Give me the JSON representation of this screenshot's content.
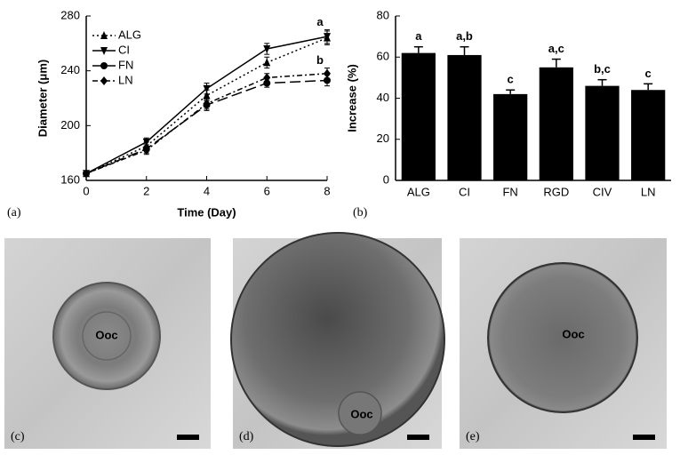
{
  "chart_data": [
    {
      "type": "line",
      "panel_label": "(a)",
      "xlabel": "Time (Day)",
      "ylabel": "Diameter (μm)",
      "x": [
        0,
        2,
        4,
        6,
        8
      ],
      "xlim": [
        0,
        8
      ],
      "xticks": [
        0,
        2,
        4,
        6,
        8
      ],
      "ylim": [
        160,
        280
      ],
      "yticks": [
        160,
        200,
        240,
        280
      ],
      "legend": "upper left",
      "series": [
        {
          "name": "ALG",
          "color": "#000000",
          "dash": "2,3",
          "marker": "triangle",
          "values": [
            165,
            185,
            222,
            246,
            264
          ],
          "errors": [
            2,
            3,
            4,
            4,
            5
          ]
        },
        {
          "name": "CI",
          "color": "#000000",
          "dash": "none",
          "marker": "triangle-down",
          "values": [
            165,
            188,
            227,
            256,
            265
          ],
          "errors": [
            2,
            3,
            4,
            4,
            5
          ]
        },
        {
          "name": "FN",
          "color": "#000000",
          "dash": "12,5",
          "marker": "circle",
          "values": [
            165,
            183,
            215,
            231,
            233
          ],
          "errors": [
            2,
            3,
            4,
            3,
            4
          ]
        },
        {
          "name": "LN",
          "color": "#000000",
          "dash": "6,3,2,3",
          "marker": "diamond",
          "values": [
            165,
            182,
            216,
            235,
            238
          ],
          "errors": [
            2,
            3,
            4,
            3,
            4
          ]
        }
      ],
      "annotations": [
        "a",
        "b"
      ]
    },
    {
      "type": "bar",
      "panel_label": "(b)",
      "ylabel": "Increase (%)",
      "categories": [
        "ALG",
        "CI",
        "FN",
        "RGD",
        "CIV",
        "LN"
      ],
      "values": [
        62,
        61,
        42,
        55,
        46,
        44
      ],
      "errors": [
        3,
        4,
        2,
        4,
        3,
        3
      ],
      "color": "#000000",
      "ylim": [
        0,
        80
      ],
      "yticks": [
        0,
        20,
        40,
        60,
        80
      ],
      "annotations": [
        "a",
        "a,b",
        "c",
        "a,c",
        "b,c",
        "c"
      ]
    }
  ],
  "panels": [
    {
      "label": "(c)",
      "cell": "Ooc"
    },
    {
      "label": "(d)",
      "cell": "Ooc"
    },
    {
      "label": "(e)",
      "cell": "Ooc"
    }
  ]
}
